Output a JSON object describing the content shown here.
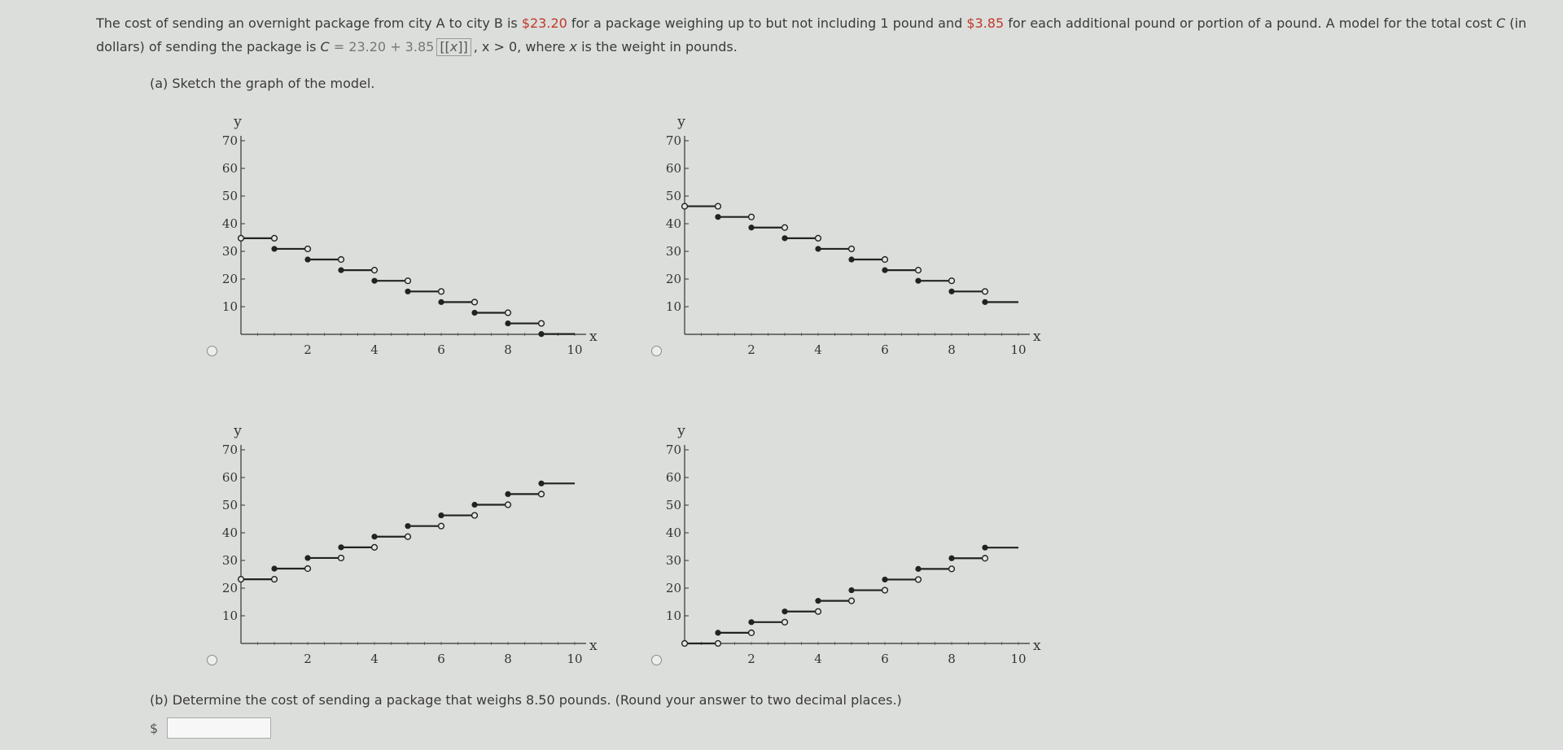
{
  "problem": {
    "text1": "The cost of sending an overnight package from city A to city B is ",
    "base_cost": "$23.20",
    "text2": " for a package weighing up to but not including 1 pound and ",
    "add_cost": "$3.85",
    "text3": " for each additional pound or portion of a pound. A model for the total cost ",
    "var_C": "C",
    "text4": " (in dollars) of sending the package is ",
    "model_lhs": "C",
    "model_eq": " = 23.20 + 3.85",
    "floor_var": "x",
    "model_cond": ", x > 0, where ",
    "var_x": "x",
    "text5": " is the weight in pounds."
  },
  "part_a": {
    "label": "(a) Sketch the graph of the model."
  },
  "part_b": {
    "label": "(b) Determine the cost of sending a package that weighs 8.50 pounds. (Round your answer to two decimal places.)",
    "currency": "$",
    "answer_value": ""
  },
  "graph_axes": {
    "x_label": "x",
    "y_label": "y",
    "x_ticks": [
      "2",
      "4",
      "6",
      "8",
      "10"
    ],
    "y_ticks": [
      "10",
      "20",
      "30",
      "40",
      "50",
      "60",
      "70"
    ]
  },
  "chart_data": [
    {
      "type": "step",
      "xlim": [
        0,
        10
      ],
      "ylim": [
        0,
        70
      ],
      "x_ticks": [
        2,
        4,
        6,
        8,
        10
      ],
      "y_ticks": [
        10,
        20,
        30,
        40,
        50,
        60,
        70
      ],
      "xlabel": "x",
      "ylabel": "y",
      "steps": [
        {
          "x0": 0,
          "x1": 1,
          "y": 34.75
        },
        {
          "x0": 1,
          "x1": 2,
          "y": 30.9
        },
        {
          "x0": 2,
          "x1": 3,
          "y": 27.05
        },
        {
          "x0": 3,
          "x1": 4,
          "y": 23.2
        },
        {
          "x0": 4,
          "x1": 5,
          "y": 19.35
        },
        {
          "x0": 5,
          "x1": 6,
          "y": 15.5
        },
        {
          "x0": 6,
          "x1": 7,
          "y": 11.65
        },
        {
          "x0": 7,
          "x1": 8,
          "y": 7.8
        },
        {
          "x0": 8,
          "x1": 9,
          "y": 3.95
        },
        {
          "x0": 9,
          "x1": 10,
          "y": 0.1
        }
      ]
    },
    {
      "type": "step",
      "xlim": [
        0,
        10
      ],
      "ylim": [
        0,
        70
      ],
      "x_ticks": [
        2,
        4,
        6,
        8,
        10
      ],
      "y_ticks": [
        10,
        20,
        30,
        40,
        50,
        60,
        70
      ],
      "xlabel": "x",
      "ylabel": "y",
      "steps": [
        {
          "x0": 0,
          "x1": 1,
          "y": 46.3
        },
        {
          "x0": 1,
          "x1": 2,
          "y": 42.45
        },
        {
          "x0": 2,
          "x1": 3,
          "y": 38.6
        },
        {
          "x0": 3,
          "x1": 4,
          "y": 34.75
        },
        {
          "x0": 4,
          "x1": 5,
          "y": 30.9
        },
        {
          "x0": 5,
          "x1": 6,
          "y": 27.05
        },
        {
          "x0": 6,
          "x1": 7,
          "y": 23.2
        },
        {
          "x0": 7,
          "x1": 8,
          "y": 19.35
        },
        {
          "x0": 8,
          "x1": 9,
          "y": 15.5
        },
        {
          "x0": 9,
          "x1": 10,
          "y": 11.65
        }
      ]
    },
    {
      "type": "step",
      "xlim": [
        0,
        10
      ],
      "ylim": [
        0,
        70
      ],
      "x_ticks": [
        2,
        4,
        6,
        8,
        10
      ],
      "y_ticks": [
        10,
        20,
        30,
        40,
        50,
        60,
        70
      ],
      "xlabel": "x",
      "ylabel": "y",
      "steps": [
        {
          "x0": 0,
          "x1": 1,
          "y": 23.2
        },
        {
          "x0": 1,
          "x1": 2,
          "y": 27.05
        },
        {
          "x0": 2,
          "x1": 3,
          "y": 30.9
        },
        {
          "x0": 3,
          "x1": 4,
          "y": 34.75
        },
        {
          "x0": 4,
          "x1": 5,
          "y": 38.6
        },
        {
          "x0": 5,
          "x1": 6,
          "y": 42.45
        },
        {
          "x0": 6,
          "x1": 7,
          "y": 46.3
        },
        {
          "x0": 7,
          "x1": 8,
          "y": 50.15
        },
        {
          "x0": 8,
          "x1": 9,
          "y": 54.0
        },
        {
          "x0": 9,
          "x1": 10,
          "y": 57.85
        }
      ]
    },
    {
      "type": "step",
      "xlim": [
        0,
        10
      ],
      "ylim": [
        0,
        70
      ],
      "x_ticks": [
        2,
        4,
        6,
        8,
        10
      ],
      "y_ticks": [
        10,
        20,
        30,
        40,
        50,
        60,
        70
      ],
      "xlabel": "x",
      "ylabel": "y",
      "steps": [
        {
          "x0": 0,
          "x1": 1,
          "y": 0
        },
        {
          "x0": 1,
          "x1": 2,
          "y": 3.85
        },
        {
          "x0": 2,
          "x1": 3,
          "y": 7.7
        },
        {
          "x0": 3,
          "x1": 4,
          "y": 11.55
        },
        {
          "x0": 4,
          "x1": 5,
          "y": 15.4
        },
        {
          "x0": 5,
          "x1": 6,
          "y": 19.25
        },
        {
          "x0": 6,
          "x1": 7,
          "y": 23.1
        },
        {
          "x0": 7,
          "x1": 8,
          "y": 26.95
        },
        {
          "x0": 8,
          "x1": 9,
          "y": 30.8
        },
        {
          "x0": 9,
          "x1": 10,
          "y": 34.65
        }
      ]
    }
  ]
}
